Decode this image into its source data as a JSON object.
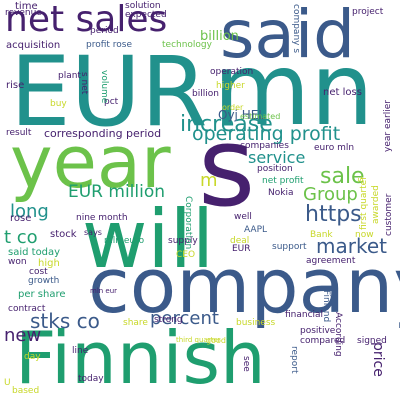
{
  "colors": {
    "background": "#ffffff",
    "purple": "#46216e",
    "navy": "#3b5a8a",
    "teal": "#21918c",
    "green": "#1f9e6f",
    "lime": "#6cc24a",
    "yellow": "#c8d82a"
  },
  "words": {
    "eur": "EUR",
    "mn": "mn",
    "said": "said",
    "year": "year",
    "will": "will",
    "company": "company",
    "finnish": "Finnish",
    "s": "s",
    "net_sales": "net sales",
    "operating_profit": "operating profit",
    "eur_million": "EUR million",
    "increase": "increase",
    "sale": "sale",
    "service": "service",
    "group": "Group",
    "https": "https",
    "market": "market",
    "percent": "percent",
    "stks_co": "stks co",
    "t_co": "t co",
    "long": "long",
    "new": "new",
    "m": "m",
    "oyj_hel": "Oyj HEL",
    "billion": "billion",
    "net_loss": "net loss",
    "corresponding_period": "corresponding period",
    "acquisition": "acquisition",
    "profit_rose": "profit rose",
    "technology": "technology",
    "solution": "solution",
    "expected": "expected",
    "period": "period",
    "time": "time",
    "revenue": "revenue",
    "rise": "rise",
    "plant": "plant",
    "s_net": "s net",
    "volume": "volume",
    "pct": "pct",
    "buy": "buy",
    "higher": "higher",
    "operation": "operation",
    "order": "order",
    "estimated": "estimated",
    "result": "result",
    "position": "position",
    "companies": "companies",
    "net_profit": "net profit",
    "euro_mln": "euro mln",
    "first_quarter": "first quarter",
    "year_earlier": "year earlier",
    "customer": "customer",
    "project": "project",
    "awarded": "awarded",
    "companys_s": "company s",
    "nokia": "Nokia",
    "said_today": "said today",
    "rose": "rose",
    "nine_month": "nine month",
    "mln_euro": "mln euro",
    "says": "says",
    "corporation": "Corporation",
    "stock": "stock",
    "high": "high",
    "won": "won",
    "cost": "cost",
    "growth": "growth",
    "contract": "contract",
    "per_share": "per share",
    "aapl": "AAPL",
    "supply": "supply",
    "deal": "deal",
    "ceo": "CEO",
    "eur_small": "EUR",
    "support": "support",
    "bank": "Bank",
    "now": "now",
    "well": "well",
    "agreement": "agreement",
    "mln_eur": "mln eur",
    "financial": "financial",
    "strong": "strong",
    "share": "share",
    "business": "business",
    "finland": "Finland",
    "positive": "positive",
    "compared": "compared",
    "signed": "signed",
    "according": "According",
    "report": "report",
    "third_quarter": "third quarter",
    "good": "good",
    "line": "line",
    "see": "see",
    "day": "day",
    "today": "today",
    "based": "based",
    "price": "price",
    "u": "U"
  }
}
